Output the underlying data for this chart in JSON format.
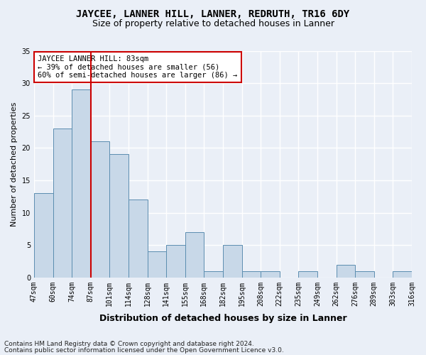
{
  "title": "JAYCEE, LANNER HILL, LANNER, REDRUTH, TR16 6DY",
  "subtitle": "Size of property relative to detached houses in Lanner",
  "xlabel": "Distribution of detached houses by size in Lanner",
  "ylabel": "Number of detached properties",
  "bar_values": [
    13,
    23,
    29,
    21,
    19,
    12,
    4,
    5,
    7,
    1,
    5,
    1,
    1,
    0,
    1,
    0,
    2,
    1,
    0,
    1
  ],
  "bar_labels": [
    "47sqm",
    "60sqm",
    "74sqm",
    "87sqm",
    "101sqm",
    "114sqm",
    "128sqm",
    "141sqm",
    "155sqm",
    "168sqm",
    "182sqm",
    "195sqm",
    "208sqm",
    "222sqm",
    "235sqm",
    "249sqm",
    "262sqm",
    "276sqm",
    "289sqm",
    "303sqm",
    "316sqm"
  ],
  "bar_color": "#c8d8e8",
  "bar_edgecolor": "#5b8db0",
  "vline_x": 2.5,
  "vline_color": "#cc0000",
  "annotation_title": "JAYCEE LANNER HILL: 83sqm",
  "annotation_line1": "← 39% of detached houses are smaller (56)",
  "annotation_line2": "60% of semi-detached houses are larger (86) →",
  "annotation_box_color": "#ffffff",
  "annotation_box_edgecolor": "#cc0000",
  "ylim": [
    0,
    35
  ],
  "yticks": [
    0,
    5,
    10,
    15,
    20,
    25,
    30,
    35
  ],
  "bg_color": "#eaeff7",
  "grid_color": "#ffffff",
  "fig_bg_color": "#eaeff7",
  "footer1": "Contains HM Land Registry data © Crown copyright and database right 2024.",
  "footer2": "Contains public sector information licensed under the Open Government Licence v3.0."
}
